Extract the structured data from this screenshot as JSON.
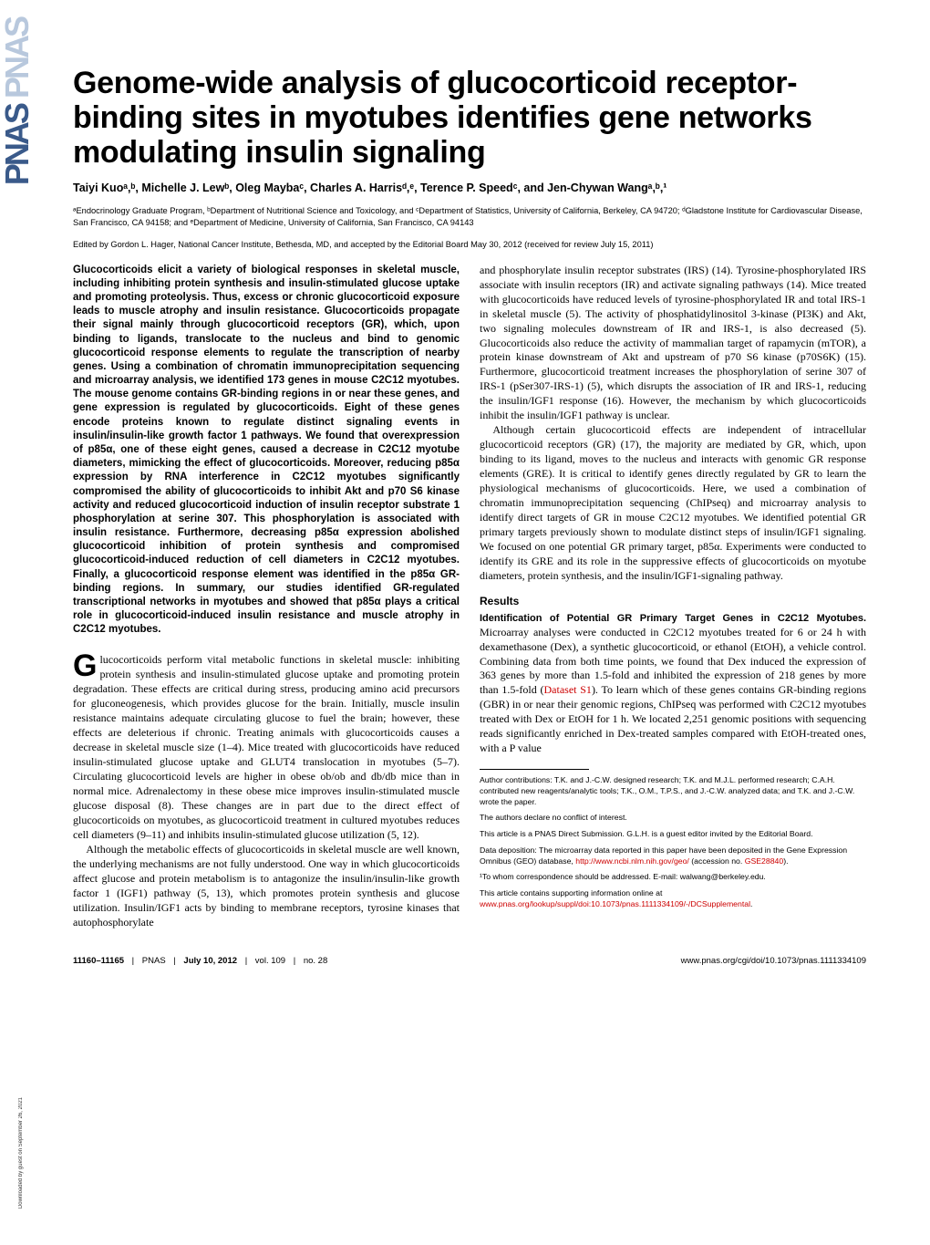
{
  "sidebar": {
    "logo_main": "PNAS",
    "logo_shadow": "PNAS",
    "download_note": "Downloaded by guest on September 26, 2021"
  },
  "title": "Genome-wide analysis of glucocorticoid receptor-binding sites in myotubes identifies gene networks modulating insulin signaling",
  "authors": "Taiyi Kuoᵃ,ᵇ, Michelle J. Lewᵇ, Oleg Maybaᶜ, Charles A. Harrisᵈ,ᵉ, Terence P. Speedᶜ, and Jen-Chywan Wangᵃ,ᵇ,¹",
  "affiliations": "ᵃEndocrinology Graduate Program, ᵇDepartment of Nutritional Science and Toxicology, and ᶜDepartment of Statistics, University of California, Berkeley, CA 94720; ᵈGladstone Institute for Cardiovascular Disease, San Francisco, CA 94158; and ᵉDepartment of Medicine, University of California, San Francisco, CA 94143",
  "edited_by": "Edited by Gordon L. Hager, National Cancer Institute, Bethesda, MD, and accepted by the Editorial Board May 30, 2012 (received for review July 15, 2011)",
  "abstract": "Glucocorticoids elicit a variety of biological responses in skeletal muscle, including inhibiting protein synthesis and insulin-stimulated glucose uptake and promoting proteolysis. Thus, excess or chronic glucocorticoid exposure leads to muscle atrophy and insulin resistance. Glucocorticoids propagate their signal mainly through glucocorticoid receptors (GR), which, upon binding to ligands, translocate to the nucleus and bind to genomic glucocorticoid response elements to regulate the transcription of nearby genes. Using a combination of chromatin immunoprecipitation sequencing and microarray analysis, we identified 173 genes in mouse C2C12 myotubes. The mouse genome contains GR-binding regions in or near these genes, and gene expression is regulated by glucocorticoids. Eight of these genes encode proteins known to regulate distinct signaling events in insulin/insulin-like growth factor 1 pathways. We found that overexpression of p85α, one of these eight genes, caused a decrease in C2C12 myotube diameters, mimicking the effect of glucocorticoids. Moreover, reducing p85α expression by RNA interference in C2C12 myotubes significantly compromised the ability of glucocorticoids to inhibit Akt and p70 S6 kinase activity and reduced glucocorticoid induction of insulin receptor substrate 1 phosphorylation at serine 307. This phosphorylation is associated with insulin resistance. Furthermore, decreasing p85α expression abolished glucocorticoid inhibition of protein synthesis and compromised glucocorticoid-induced reduction of cell diameters in C2C12 myotubes. Finally, a glucocorticoid response element was identified in the p85α GR-binding regions. In summary, our studies identified GR-regulated transcriptional networks in myotubes and showed that p85α plays a critical role in glucocorticoid-induced insulin resistance and muscle atrophy in C2C12 myotubes.",
  "body": {
    "p1_first": "G",
    "p1_rest": "lucocorticoids perform vital metabolic functions in skeletal muscle: inhibiting protein synthesis and insulin-stimulated glucose uptake and promoting protein degradation. These effects are critical during stress, producing amino acid precursors for gluconeogenesis, which provides glucose for the brain. Initially, muscle insulin resistance maintains adequate circulating glucose to fuel the brain; however, these effects are deleterious if chronic. Treating animals with glucocorticoids causes a decrease in skeletal muscle size (1–4). Mice treated with glucocorticoids have reduced insulin-stimulated glucose uptake and GLUT4 translocation in myotubes (5–7). Circulating glucocorticoid levels are higher in obese ob/ob and db/db mice than in normal mice. Adrenalectomy in these obese mice improves insulin-stimulated muscle glucose disposal (8). These changes are in part due to the direct effect of glucocorticoids on myotubes, as glucocorticoid treatment in cultured myotubes reduces cell diameters (9–11) and inhibits insulin-stimulated glucose utilization (5, 12).",
    "p2": "Although the metabolic effects of glucocorticoids in skeletal muscle are well known, the underlying mechanisms are not fully understood. One way in which glucocorticoids affect glucose and protein metabolism is to antagonize the insulin/insulin-like growth factor 1 (IGF1) pathway (5, 13), which promotes protein synthesis and glucose utilization. Insulin/IGF1 acts by binding to membrane receptors, tyrosine kinases that autophosphorylate",
    "p3": "and phosphorylate insulin receptor substrates (IRS) (14). Tyrosine-phosphorylated IRS associate with insulin receptors (IR) and activate signaling pathways (14). Mice treated with glucocorticoids have reduced levels of tyrosine-phosphorylated IR and total IRS-1 in skeletal muscle (5). The activity of phosphatidylinositol 3-kinase (PI3K) and Akt, two signaling molecules downstream of IR and IRS-1, is also decreased (5). Glucocorticoids also reduce the activity of mammalian target of rapamycin (mTOR), a protein kinase downstream of Akt and upstream of p70 S6 kinase (p70S6K) (15). Furthermore, glucocorticoid treatment increases the phosphorylation of serine 307 of IRS-1 (pSer307-IRS-1) (5), which disrupts the association of IR and IRS-1, reducing the insulin/IGF1 response (16). However, the mechanism by which glucocorticoids inhibit the insulin/IGF1 pathway is unclear.",
    "p4": "Although certain glucocorticoid effects are independent of intracellular glucocorticoid receptors (GR) (17), the majority are mediated by GR, which, upon binding to its ligand, moves to the nucleus and interacts with genomic GR response elements (GRE). It is critical to identify genes directly regulated by GR to learn the physiological mechanisms of glucocorticoids. Here, we used a combination of chromatin immunoprecipitation sequencing (ChIPseq) and microarray analysis to identify direct targets of GR in mouse C2C12 myotubes. We identified potential GR primary targets previously shown to modulate distinct steps of insulin/IGF1 signaling. We focused on one potential GR primary target, p85α. Experiments were conducted to identify its GRE and its role in the suppressive effects of glucocorticoids on myotube diameters, protein synthesis, and the insulin/IGF1-signaling pathway."
  },
  "results": {
    "heading": "Results",
    "subhead": "Identification of Potential GR Primary Target Genes in C2C12 Myotubes.",
    "text_a": " Microarray analyses were conducted in C2C12 myotubes treated for 6 or 24 h with dexamethasone (Dex), a synthetic glucocorticoid, or ethanol (EtOH), a vehicle control. Combining data from both time points, we found that Dex induced the expression of 363 genes by more than 1.5-fold and inhibited the expression of 218 genes by more than 1.5-fold (",
    "dataset_link": "Dataset S1",
    "text_b": "). To learn which of these genes contains GR-binding regions (GBR) in or near their genomic regions, ChIPseq was performed with C2C12 myotubes treated with Dex or EtOH for 1 h. We located 2,251 genomic positions with sequencing reads significantly enriched in Dex-treated samples compared with EtOH-treated ones, with a P value"
  },
  "footnotes": {
    "f1": "Author contributions: T.K. and J.-C.W. designed research; T.K. and M.J.L. performed research; C.A.H. contributed new reagents/analytic tools; T.K., O.M., T.P.S., and J.-C.W. analyzed data; and T.K. and J.-C.W. wrote the paper.",
    "f2": "The authors declare no conflict of interest.",
    "f3": "This article is a PNAS Direct Submission. G.L.H. is a guest editor invited by the Editorial Board.",
    "f4_a": "Data deposition: The microarray data reported in this paper have been deposited in the Gene Expression Omnibus (GEO) database, ",
    "f4_url": "http://www.ncbi.nlm.nih.gov/geo/",
    "f4_b": " (accession no. ",
    "f4_acc": "GSE28840",
    "f4_c": ").",
    "f5": "¹To whom correspondence should be addressed. E-mail: walwang@berkeley.edu.",
    "f6_a": "This article contains supporting information online at ",
    "f6_url": "www.pnas.org/lookup/suppl/doi:10.1073/pnas.1111334109/-/DCSupplemental",
    "f6_b": "."
  },
  "footer": {
    "pages": "11160–11165",
    "pnas": "PNAS",
    "date": "July 10, 2012",
    "vol": "vol. 109",
    "no": "no. 28",
    "doi": "www.pnas.org/cgi/doi/10.1073/pnas.1111334109",
    "sep": "|"
  }
}
